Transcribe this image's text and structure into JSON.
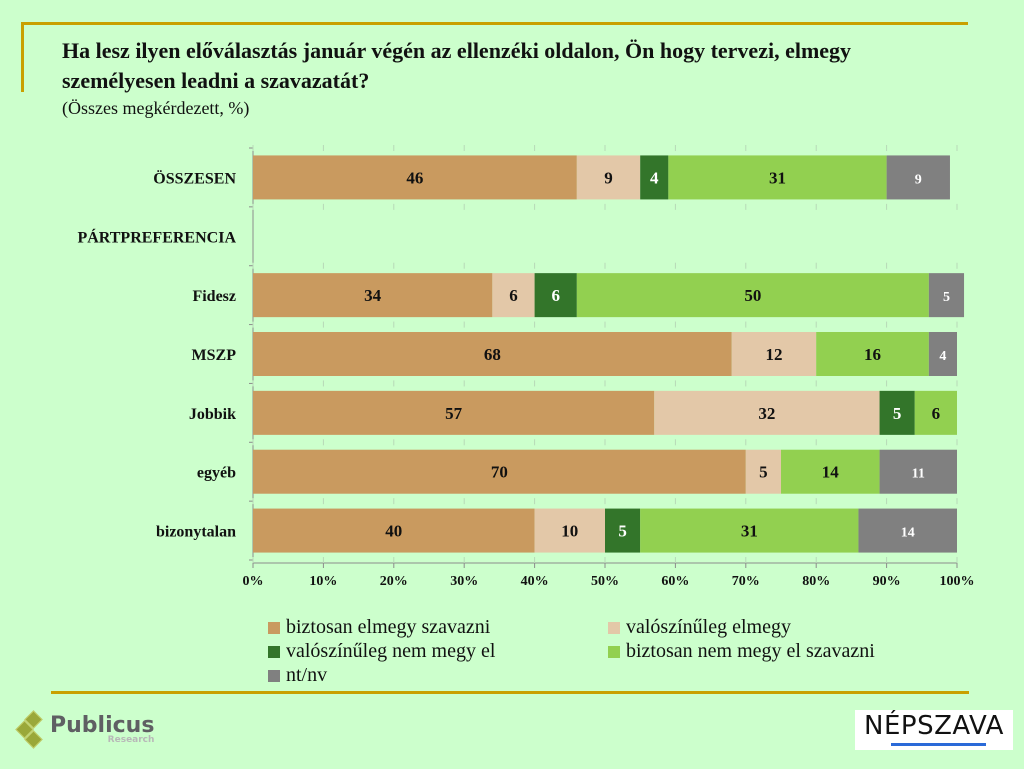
{
  "header": {
    "title": "Ha lesz ilyen előválasztás január végén az ellenzéki oldalon, Ön hogy tervezi, elmegy személyesen leadni a szavazatát?",
    "subtitle": "(Összes megkérdezett, %)"
  },
  "chart_data": {
    "type": "bar",
    "orientation": "horizontal-stacked-100",
    "title": "Ha lesz ilyen előválasztás január végén az ellenzéki oldalon, Ön hogy tervezi, elmegy személyesen leadni a szavazatát?",
    "subtitle": "(Összes megkérdezett, %)",
    "categories": [
      "ÖSSZESEN",
      "PÁRTPREFERENCIA",
      "Fidesz",
      "MSZP",
      "Jobbik",
      "egyéb",
      "bizonytalan"
    ],
    "bold_categories": [
      "ÖSSZESEN",
      "PÁRTPREFERENCIA",
      "MSZP"
    ],
    "xlabel": "",
    "ylabel": "",
    "xlim": [
      0,
      100
    ],
    "x_ticks": [
      "0%",
      "10%",
      "20%",
      "30%",
      "40%",
      "50%",
      "60%",
      "70%",
      "80%",
      "90%",
      "100%"
    ],
    "grid": false,
    "legend_position": "bottom",
    "series": [
      {
        "name": "biztosan elmegy szavazni",
        "color": "#c99a5f",
        "label_color": "#111111",
        "values": [
          46,
          null,
          34,
          68,
          57,
          70,
          40
        ]
      },
      {
        "name": "valószínűleg elmegy",
        "color": "#e3c8a8",
        "label_color": "#111111",
        "values": [
          9,
          null,
          6,
          12,
          32,
          5,
          10
        ]
      },
      {
        "name": "valószínűleg nem megy el",
        "color": "#33752a",
        "label_color": "#ffffff",
        "values": [
          4,
          null,
          6,
          0,
          5,
          0,
          5
        ]
      },
      {
        "name": "biztosan nem megy el szavazni",
        "color": "#92d050",
        "label_color": "#111111",
        "values": [
          31,
          null,
          50,
          16,
          6,
          14,
          31
        ]
      },
      {
        "name": "nt/nv",
        "color": "#808080",
        "label_color": "#ffffff",
        "values": [
          9,
          null,
          5,
          4,
          0,
          11,
          14
        ]
      }
    ]
  },
  "footer": {
    "publicus_name": "Publicus",
    "publicus_sub": "Research",
    "nepszava_name": "NÉPSZAVA"
  }
}
